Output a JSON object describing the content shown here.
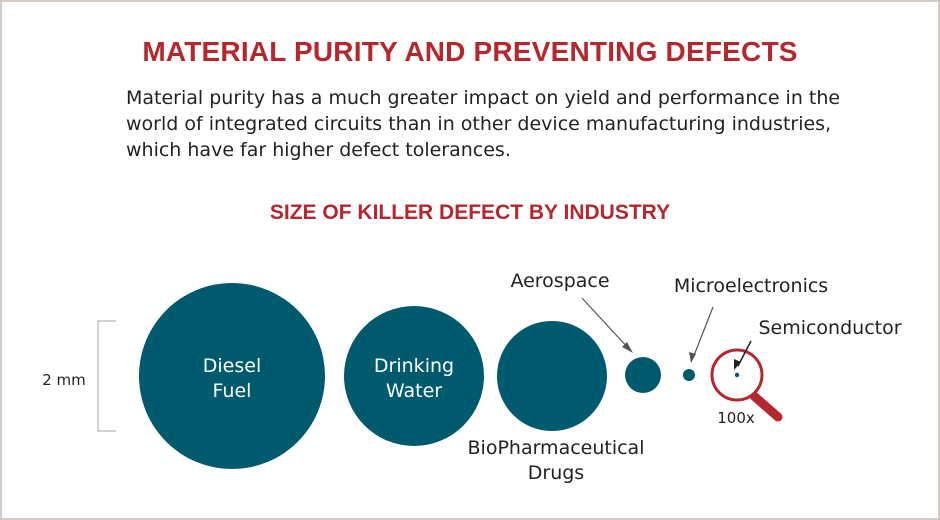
{
  "colors": {
    "accent": "#b5272d",
    "circle": "#005a6e",
    "text": "#222222",
    "bracket": "#c8c2bc",
    "white": "#ffffff"
  },
  "title": "MATERIAL PURITY AND PREVENTING DEFECTS",
  "intro": "Material purity has a much greater impact on yield and performance in the world of integrated circuits than in other device manufacturing industries, which have far higher defect tolerances.",
  "subtitle": "SIZE OF KILLER DEFECT BY INDUSTRY",
  "scale_label": "2 mm",
  "defects": [
    {
      "name": "diesel-fuel",
      "label_lines": [
        "Diesel",
        "Fuel"
      ]
    },
    {
      "name": "drinking-water",
      "label_lines": [
        "Drinking",
        "Water"
      ]
    },
    {
      "name": "biopharmaceutical-drugs",
      "label_lines": [
        "BioPharmaceutical",
        "Drugs"
      ]
    },
    {
      "name": "aerospace",
      "label_lines": [
        "Aerospace"
      ]
    },
    {
      "name": "microelectronics",
      "label_lines": [
        "Microelectronics"
      ]
    },
    {
      "name": "semiconductor",
      "label_lines": [
        "Semiconductor"
      ]
    }
  ],
  "magnifier_label": "100x",
  "icons": {
    "magnifier": "magnifying-glass-icon"
  }
}
